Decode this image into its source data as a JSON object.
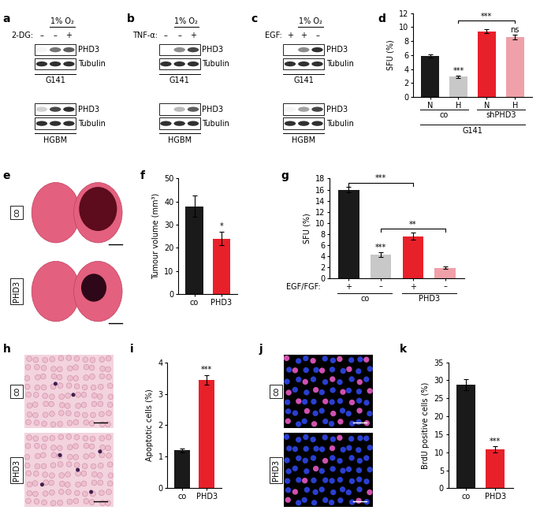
{
  "chart_data": [
    {
      "panel": "d",
      "type": "bar",
      "categories": [
        "N",
        "H",
        "N",
        "H"
      ],
      "groups": [
        "co",
        "co",
        "shPHD3",
        "shPHD3"
      ],
      "cell_line": "G141",
      "values": [
        5.9,
        2.9,
        9.4,
        8.6
      ],
      "errors": [
        0.2,
        0.2,
        0.3,
        0.3
      ],
      "colors": [
        "#1a1a1a",
        "#c8c8c8",
        "#e8202a",
        "#f0a0a8"
      ],
      "ylabel": "SFU (%)",
      "ylim": [
        0,
        12
      ],
      "yticks": [
        0,
        2,
        4,
        6,
        8,
        10,
        12
      ],
      "annotations": [
        {
          "text": "***",
          "index": 1
        },
        {
          "text": "ns",
          "index": 3
        }
      ],
      "brackets": [
        {
          "text": "***",
          "from": 1,
          "to": 3
        }
      ]
    },
    {
      "panel": "f",
      "type": "bar",
      "categories": [
        "co",
        "PHD3"
      ],
      "values": [
        38,
        24
      ],
      "errors": [
        4.5,
        3
      ],
      "colors": [
        "#1a1a1a",
        "#e8202a"
      ],
      "ylabel": "Tumour volume (mm³)",
      "ylim": [
        0,
        50
      ],
      "yticks": [
        0,
        10,
        20,
        30,
        40,
        50
      ],
      "annotations": [
        {
          "text": "*",
          "index": 1
        }
      ]
    },
    {
      "panel": "g",
      "type": "bar",
      "categories": [
        "+",
        "–",
        "+",
        "–"
      ],
      "x_row_label": "EGF/FGF:",
      "groups": [
        "co",
        "co",
        "PHD3",
        "PHD3"
      ],
      "values": [
        16.0,
        4.3,
        7.6,
        1.9
      ],
      "errors": [
        0.5,
        0.4,
        0.6,
        0.2
      ],
      "colors": [
        "#1a1a1a",
        "#c8c8c8",
        "#e8202a",
        "#f0a0a8"
      ],
      "ylabel": "SFU (%)",
      "ylim": [
        0,
        18
      ],
      "yticks": [
        0,
        2,
        4,
        6,
        8,
        10,
        12,
        14,
        16,
        18
      ],
      "annotations": [
        {
          "text": "***",
          "index": 1
        }
      ],
      "brackets": [
        {
          "text": "**",
          "from": 1,
          "to": 3
        },
        {
          "text": "***",
          "from": 0,
          "to": 2
        }
      ]
    },
    {
      "panel": "i",
      "type": "bar",
      "categories": [
        "co",
        "PHD3"
      ],
      "values": [
        1.2,
        3.45
      ],
      "errors": [
        0.07,
        0.15
      ],
      "colors": [
        "#1a1a1a",
        "#e8202a"
      ],
      "ylabel": "Apoptotic cells (%)",
      "ylim": [
        0,
        4
      ],
      "yticks": [
        0,
        1,
        2,
        3,
        4
      ],
      "annotations": [
        {
          "text": "***",
          "index": 1
        }
      ]
    },
    {
      "panel": "k",
      "type": "bar",
      "categories": [
        "co",
        "PHD3"
      ],
      "values": [
        28.8,
        10.8
      ],
      "errors": [
        1.5,
        0.8
      ],
      "colors": [
        "#1a1a1a",
        "#e8202a"
      ],
      "ylabel": "BrdU positive cells (%)",
      "ylim": [
        0,
        35
      ],
      "yticks": [
        0,
        5,
        10,
        15,
        20,
        25,
        30,
        35
      ],
      "annotations": [
        {
          "text": "***",
          "index": 1
        }
      ]
    }
  ],
  "blots": [
    {
      "panel": "a",
      "condition": "1% O₂",
      "condition_lanes": [
        1,
        2
      ],
      "treatment": "2-DG:",
      "signs": [
        "–",
        "–",
        "+"
      ],
      "cell_lines": [
        {
          "name": "G141",
          "rows": [
            {
              "label": "PHD3",
              "bands": [
                0.05,
                0.6,
                0.7
              ]
            },
            {
              "label": "Tubulin",
              "bands": [
                0.9,
                0.9,
                0.9
              ]
            }
          ]
        },
        {
          "name": "HGBM",
          "rows": [
            {
              "label": "PHD3",
              "bands": [
                0.2,
                0.8,
                0.9
              ]
            },
            {
              "label": "Tubulin",
              "bands": [
                0.9,
                0.9,
                0.9
              ]
            }
          ]
        }
      ]
    },
    {
      "panel": "b",
      "condition": "1% O₂",
      "condition_lanes": [
        1,
        2
      ],
      "treatment": "TNF-α:",
      "signs": [
        "–",
        "–",
        "+"
      ],
      "cell_lines": [
        {
          "name": "G141",
          "rows": [
            {
              "label": "PHD3",
              "bands": [
                0.0,
                0.5,
                0.8
              ]
            },
            {
              "label": "Tubulin",
              "bands": [
                0.9,
                0.9,
                0.9
              ]
            }
          ]
        },
        {
          "name": "HGBM",
          "rows": [
            {
              "label": "PHD3",
              "bands": [
                0.0,
                0.3,
                0.7
              ]
            },
            {
              "label": "Tubulin",
              "bands": [
                0.9,
                0.9,
                0.9
              ]
            }
          ]
        }
      ]
    },
    {
      "panel": "c",
      "condition": "1% O₂",
      "condition_lanes": [
        1,
        2
      ],
      "treatment": "EGF:",
      "signs": [
        "+",
        "+",
        "–"
      ],
      "cell_lines": [
        {
          "name": "G141",
          "rows": [
            {
              "label": "PHD3",
              "bands": [
                0.0,
                0.5,
                0.9
              ]
            },
            {
              "label": "Tubulin",
              "bands": [
                0.9,
                0.9,
                0.9
              ]
            }
          ]
        },
        {
          "name": "HGBM",
          "rows": [
            {
              "label": "PHD3",
              "bands": [
                0.05,
                0.4,
                0.8
              ]
            },
            {
              "label": "Tubulin",
              "bands": [
                0.9,
                0.9,
                0.9
              ]
            }
          ]
        }
      ]
    }
  ],
  "images": [
    {
      "panel": "e",
      "kind": "section",
      "labels": [
        "co",
        "PHD3"
      ]
    },
    {
      "panel": "h",
      "kind": "stain",
      "labels": [
        "co",
        "PHD3"
      ]
    },
    {
      "panel": "j",
      "kind": "fluorescence",
      "labels": [
        "co",
        "PHD3"
      ]
    }
  ]
}
